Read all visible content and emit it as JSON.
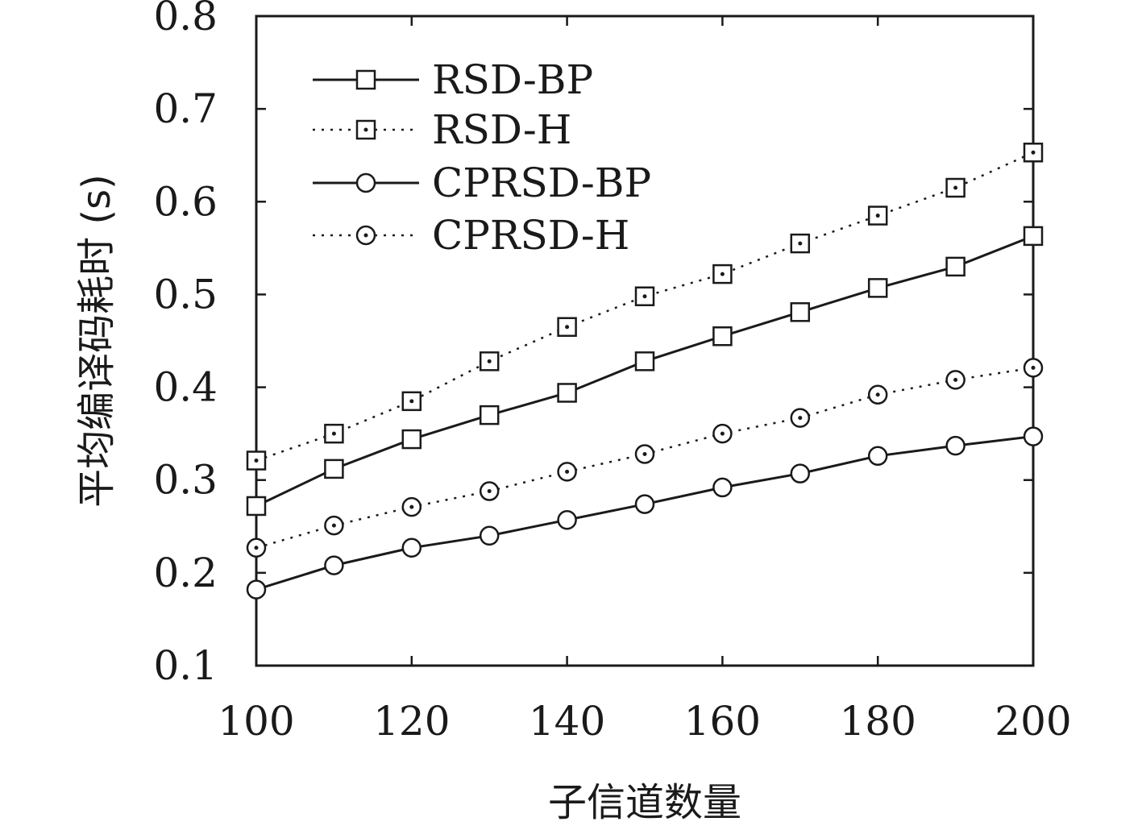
{
  "chart_data": {
    "type": "line",
    "title": "",
    "xlabel": "子信道数量",
    "ylabel": "平均编译码耗时 (s)",
    "xlim": [
      100,
      200
    ],
    "ylim": [
      0.1,
      0.8
    ],
    "xticks": [
      "100",
      "120",
      "140",
      "160",
      "180",
      "200"
    ],
    "yticks": [
      "0.1",
      "0.2",
      "0.3",
      "0.4",
      "0.5",
      "0.6",
      "0.7",
      "0.8"
    ],
    "grid": false,
    "legend_position": "top-left",
    "x": [
      100,
      110,
      120,
      130,
      140,
      150,
      160,
      170,
      180,
      190,
      200
    ],
    "series": [
      {
        "name": "RSD-BP",
        "marker": "square",
        "line": "solid",
        "values": [
          0.272,
          0.312,
          0.344,
          0.37,
          0.394,
          0.428,
          0.455,
          0.481,
          0.507,
          0.53,
          0.563
        ]
      },
      {
        "name": "RSD-H",
        "marker": "square-dot",
        "line": "dotted",
        "values": [
          0.321,
          0.35,
          0.385,
          0.428,
          0.465,
          0.498,
          0.522,
          0.555,
          0.585,
          0.615,
          0.653
        ]
      },
      {
        "name": "CPRSD-BP",
        "marker": "circle",
        "line": "solid",
        "values": [
          0.182,
          0.208,
          0.227,
          0.24,
          0.257,
          0.274,
          0.292,
          0.307,
          0.326,
          0.337,
          0.347
        ]
      },
      {
        "name": "CPRSD-H",
        "marker": "circle-dot",
        "line": "dotted",
        "values": [
          0.227,
          0.251,
          0.271,
          0.288,
          0.309,
          0.328,
          0.35,
          0.367,
          0.392,
          0.408,
          0.421
        ]
      }
    ]
  }
}
